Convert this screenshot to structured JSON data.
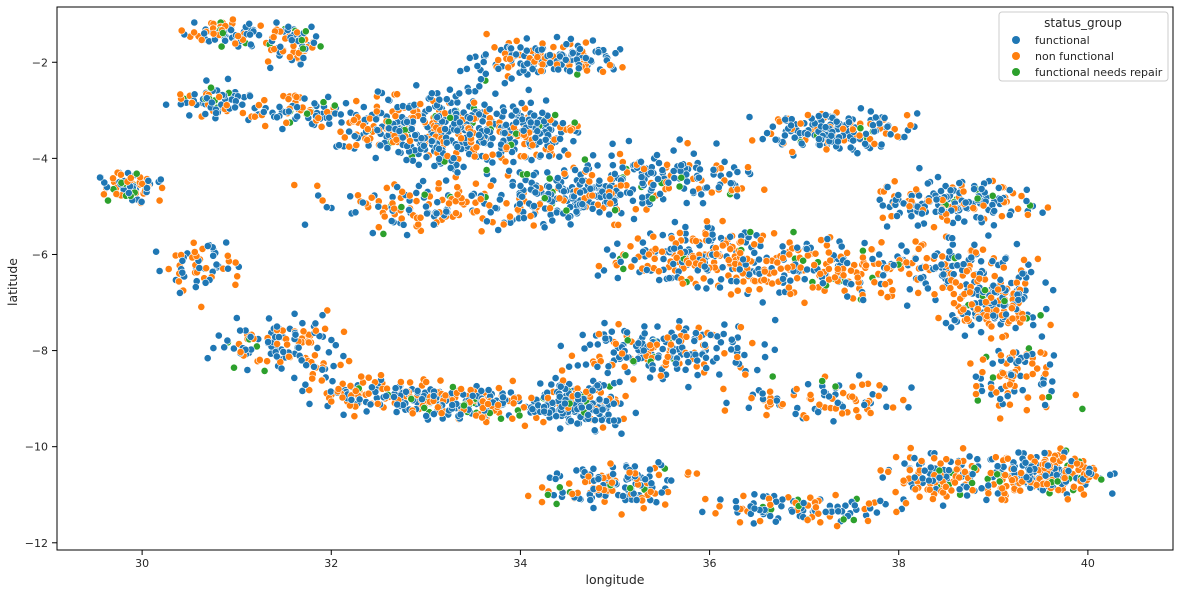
{
  "chart_data": {
    "type": "scatter",
    "title": "",
    "xlabel": "longitude",
    "ylabel": "latitude",
    "xlim": [
      29.1,
      40.9
    ],
    "ylim": [
      -12.15,
      -0.85
    ],
    "xticks": [
      30,
      32,
      34,
      36,
      38,
      40
    ],
    "yticks": [
      -2,
      -4,
      -6,
      -8,
      -10,
      -12
    ],
    "grid": false,
    "legend": {
      "title": "status_group",
      "placement": "top-right",
      "entries": [
        {
          "name": "functional",
          "color": "#1f77b4"
        },
        {
          "name": "non functional",
          "color": "#ff7f0e"
        },
        {
          "name": "functional needs repair",
          "color": "#2ca02c"
        }
      ]
    },
    "series": [
      {
        "name": "functional",
        "color": "#1f77b4"
      },
      {
        "name": "non functional",
        "color": "#ff7f0e"
      },
      {
        "name": "functional needs repair",
        "color": "#2ca02c"
      }
    ],
    "clusters": [
      {
        "lon": 29.9,
        "lat": -4.6,
        "spread_lon": 0.25,
        "spread_lat": 0.25,
        "n": 70,
        "mix": [
          0.45,
          0.35,
          0.2
        ]
      },
      {
        "lon": 30.9,
        "lat": -1.4,
        "spread_lon": 0.3,
        "spread_lat": 0.2,
        "n": 70,
        "mix": [
          0.55,
          0.35,
          0.1
        ]
      },
      {
        "lon": 31.6,
        "lat": -1.6,
        "spread_lon": 0.25,
        "spread_lat": 0.35,
        "n": 70,
        "mix": [
          0.5,
          0.4,
          0.1
        ]
      },
      {
        "lon": 30.8,
        "lat": -2.8,
        "spread_lon": 0.35,
        "spread_lat": 0.3,
        "n": 70,
        "mix": [
          0.6,
          0.3,
          0.1
        ]
      },
      {
        "lon": 31.6,
        "lat": -3.0,
        "spread_lon": 0.4,
        "spread_lat": 0.3,
        "n": 70,
        "mix": [
          0.6,
          0.35,
          0.05
        ]
      },
      {
        "lon": 32.7,
        "lat": -3.4,
        "spread_lon": 0.6,
        "spread_lat": 0.5,
        "n": 180,
        "mix": [
          0.5,
          0.45,
          0.05
        ]
      },
      {
        "lon": 33.4,
        "lat": -3.4,
        "spread_lon": 0.6,
        "spread_lat": 0.7,
        "n": 260,
        "mix": [
          0.7,
          0.25,
          0.05
        ]
      },
      {
        "lon": 34.1,
        "lat": -3.4,
        "spread_lon": 0.35,
        "spread_lat": 0.5,
        "n": 120,
        "mix": [
          0.65,
          0.3,
          0.05
        ]
      },
      {
        "lon": 34.3,
        "lat": -1.9,
        "spread_lon": 0.7,
        "spread_lat": 0.3,
        "n": 150,
        "mix": [
          0.6,
          0.38,
          0.02
        ]
      },
      {
        "lon": 34.5,
        "lat": -4.8,
        "spread_lon": 0.6,
        "spread_lat": 0.45,
        "n": 180,
        "mix": [
          0.7,
          0.25,
          0.05
        ]
      },
      {
        "lon": 33.0,
        "lat": -5.0,
        "spread_lon": 0.9,
        "spread_lat": 0.45,
        "n": 140,
        "mix": [
          0.45,
          0.5,
          0.05
        ]
      },
      {
        "lon": 35.5,
        "lat": -4.4,
        "spread_lon": 0.8,
        "spread_lat": 0.5,
        "n": 160,
        "mix": [
          0.65,
          0.3,
          0.05
        ]
      },
      {
        "lon": 35.9,
        "lat": -6.0,
        "spread_lon": 0.8,
        "spread_lat": 0.5,
        "n": 220,
        "mix": [
          0.4,
          0.55,
          0.05
        ]
      },
      {
        "lon": 37.0,
        "lat": -6.3,
        "spread_lon": 1.0,
        "spread_lat": 0.5,
        "n": 200,
        "mix": [
          0.45,
          0.5,
          0.05
        ]
      },
      {
        "lon": 37.3,
        "lat": -3.4,
        "spread_lon": 0.6,
        "spread_lat": 0.35,
        "n": 170,
        "mix": [
          0.7,
          0.25,
          0.05
        ]
      },
      {
        "lon": 38.6,
        "lat": -4.9,
        "spread_lon": 0.7,
        "spread_lat": 0.4,
        "n": 180,
        "mix": [
          0.65,
          0.3,
          0.05
        ]
      },
      {
        "lon": 38.6,
        "lat": -6.3,
        "spread_lon": 0.7,
        "spread_lat": 0.5,
        "n": 140,
        "mix": [
          0.55,
          0.4,
          0.05
        ]
      },
      {
        "lon": 39.0,
        "lat": -7.1,
        "spread_lon": 0.45,
        "spread_lat": 0.45,
        "n": 160,
        "mix": [
          0.5,
          0.45,
          0.05
        ]
      },
      {
        "lon": 31.5,
        "lat": -7.9,
        "spread_lon": 0.5,
        "spread_lat": 0.45,
        "n": 120,
        "mix": [
          0.5,
          0.45,
          0.05
        ]
      },
      {
        "lon": 30.6,
        "lat": -6.3,
        "spread_lon": 0.4,
        "spread_lat": 0.6,
        "n": 60,
        "mix": [
          0.4,
          0.6,
          0.0
        ]
      },
      {
        "lon": 32.5,
        "lat": -8.9,
        "spread_lon": 0.7,
        "spread_lat": 0.3,
        "n": 130,
        "mix": [
          0.5,
          0.45,
          0.05
        ]
      },
      {
        "lon": 33.5,
        "lat": -9.1,
        "spread_lon": 0.6,
        "spread_lat": 0.3,
        "n": 160,
        "mix": [
          0.45,
          0.45,
          0.1
        ]
      },
      {
        "lon": 34.6,
        "lat": -9.1,
        "spread_lon": 0.4,
        "spread_lat": 0.4,
        "n": 200,
        "mix": [
          0.75,
          0.2,
          0.05
        ]
      },
      {
        "lon": 35.5,
        "lat": -8.0,
        "spread_lon": 0.8,
        "spread_lat": 0.45,
        "n": 200,
        "mix": [
          0.65,
          0.3,
          0.05
        ]
      },
      {
        "lon": 35.0,
        "lat": -10.8,
        "spread_lon": 0.6,
        "spread_lat": 0.4,
        "n": 150,
        "mix": [
          0.6,
          0.35,
          0.05
        ]
      },
      {
        "lon": 37.2,
        "lat": -9.0,
        "spread_lon": 0.8,
        "spread_lat": 0.4,
        "n": 90,
        "mix": [
          0.45,
          0.5,
          0.05
        ]
      },
      {
        "lon": 37.0,
        "lat": -11.3,
        "spread_lon": 0.8,
        "spread_lat": 0.25,
        "n": 100,
        "mix": [
          0.5,
          0.4,
          0.1
        ]
      },
      {
        "lon": 38.6,
        "lat": -10.6,
        "spread_lon": 0.6,
        "spread_lat": 0.4,
        "n": 160,
        "mix": [
          0.4,
          0.55,
          0.05
        ]
      },
      {
        "lon": 39.6,
        "lat": -10.6,
        "spread_lon": 0.45,
        "spread_lat": 0.35,
        "n": 200,
        "mix": [
          0.45,
          0.5,
          0.05
        ]
      },
      {
        "lon": 39.3,
        "lat": -8.6,
        "spread_lon": 0.4,
        "spread_lat": 0.6,
        "n": 90,
        "mix": [
          0.45,
          0.5,
          0.05
        ]
      }
    ]
  }
}
